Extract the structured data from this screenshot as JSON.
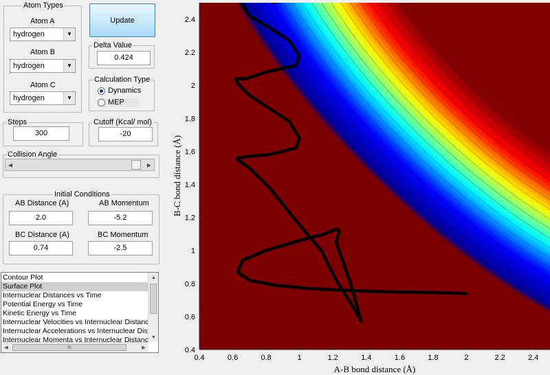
{
  "panel": {
    "atom_types": {
      "title": "Atom Types",
      "atom_a": {
        "label": "Atom A",
        "value": "hydrogen"
      },
      "atom_b": {
        "label": "Atom B",
        "value": "hydrogen"
      },
      "atom_c": {
        "label": "Atom C",
        "value": "hydrogen"
      }
    },
    "update_label": "Update",
    "delta": {
      "title": "Delta Value",
      "value": "0.424"
    },
    "calc_type": {
      "title": "Calculation Type",
      "options": [
        "Dynamics",
        "MEP"
      ],
      "selected": "Dynamics"
    },
    "steps": {
      "title": "Steps",
      "value": "300"
    },
    "cutoff": {
      "title": "Cutoff (Kcal/ mol)",
      "value": "-20"
    },
    "collision_angle": {
      "title": "Collision Angle",
      "position": 0.97
    },
    "initial_conditions": {
      "title": "Initial Conditions",
      "ab_distance": {
        "label": "AB Distance (A)",
        "value": "2.0"
      },
      "ab_momentum": {
        "label": "AB Momentum",
        "value": "-5.2"
      },
      "bc_distance": {
        "label": "BC Distance (A)",
        "value": "0.74"
      },
      "bc_momentum": {
        "label": "BC Momentum",
        "value": "-2.5"
      }
    },
    "plot_list": {
      "items": [
        "Contour Plot",
        "Surface Plot",
        "Internuclear Distances vs Time",
        "Potential Energy vs Time",
        "Kinetic Energy vs Time",
        "Internuclear Velocities vs Internuclear Distance",
        "Internuclear Accelerations vs Internuclear Dista",
        "Internuclear Momenta vs Internuclear Distance"
      ],
      "selected_index": 1,
      "hscroll_glyph": "III"
    }
  },
  "chart_data": {
    "type": "heatmap",
    "xlabel": "A-B bond distance (Å)",
    "ylabel": "B-C bond distance (Å)",
    "xlim": [
      0.4,
      2.5
    ],
    "ylim": [
      0.4,
      2.5
    ],
    "xticks": [
      "0.4",
      "0.6",
      "0.8",
      "1",
      "1.2",
      "1.4",
      "1.6",
      "1.8",
      "2",
      "2.2",
      "2.4"
    ],
    "yticks": [
      "0.4",
      "0.6",
      "0.8",
      "1",
      "1.2",
      "1.4",
      "1.6",
      "1.8",
      "2",
      "2.2",
      "2.4"
    ],
    "colormap": [
      "#00008f",
      "#0000ff",
      "#00ffff",
      "#ffff00",
      "#ff0000",
      "#800000"
    ],
    "trajectory": [
      [
        2.0,
        0.74
      ],
      [
        1.8,
        0.745
      ],
      [
        1.5,
        0.75
      ],
      [
        1.25,
        0.76
      ],
      [
        1.05,
        0.77
      ],
      [
        0.85,
        0.79
      ],
      [
        0.7,
        0.82
      ],
      [
        0.63,
        0.87
      ],
      [
        0.66,
        0.94
      ],
      [
        0.8,
        1.0
      ],
      [
        1.0,
        1.06
      ],
      [
        1.15,
        1.1
      ],
      [
        1.22,
        1.13
      ],
      [
        1.24,
        1.12
      ],
      [
        1.22,
        1.05
      ],
      [
        1.3,
        0.82
      ],
      [
        1.37,
        0.57
      ],
      [
        1.32,
        0.66
      ],
      [
        1.22,
        0.82
      ],
      [
        1.13,
        1.0
      ],
      [
        0.98,
        1.18
      ],
      [
        0.82,
        1.38
      ],
      [
        0.7,
        1.5
      ],
      [
        0.63,
        1.55
      ],
      [
        0.63,
        1.56
      ],
      [
        0.7,
        1.57
      ],
      [
        0.82,
        1.58
      ],
      [
        0.98,
        1.62
      ],
      [
        1.0,
        1.68
      ],
      [
        0.94,
        1.78
      ],
      [
        0.82,
        1.86
      ],
      [
        0.7,
        1.94
      ],
      [
        0.63,
        2.01
      ],
      [
        0.62,
        2.04
      ],
      [
        0.68,
        2.04
      ],
      [
        0.8,
        2.08
      ],
      [
        0.98,
        2.12
      ],
      [
        1.0,
        2.18
      ],
      [
        0.94,
        2.27
      ],
      [
        0.82,
        2.35
      ],
      [
        0.7,
        2.42
      ],
      [
        0.65,
        2.5
      ]
    ],
    "trajectory_top": [
      [
        0.84,
        2.5
      ],
      [
        0.88,
        2.51
      ],
      [
        0.96,
        2.51
      ],
      [
        1.0,
        2.52
      ]
    ]
  }
}
